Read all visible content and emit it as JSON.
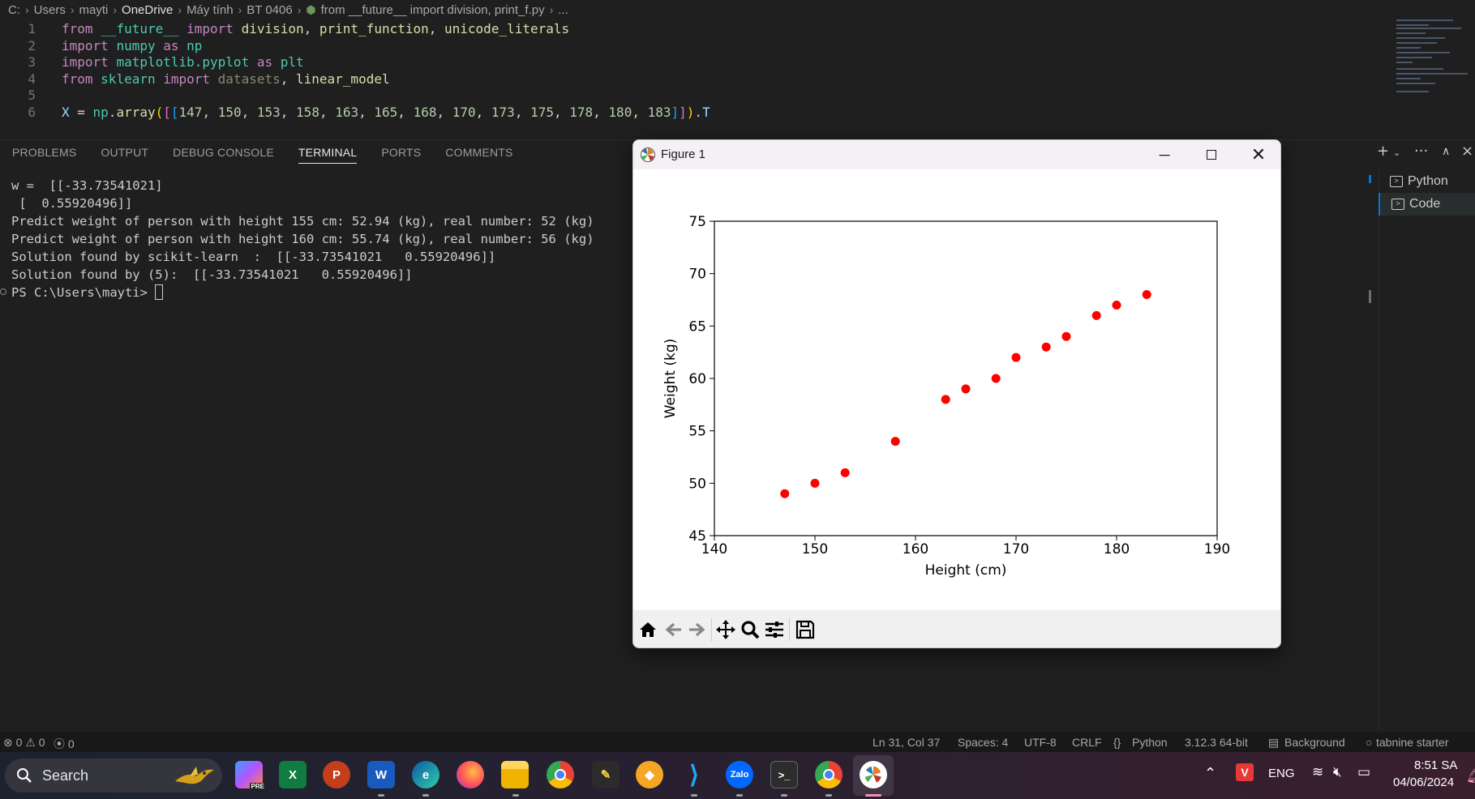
{
  "breadcrumb": {
    "items": [
      "C:",
      "Users",
      "mayti",
      "OneDrive",
      "Máy tính",
      "BT 0406"
    ],
    "file": "from __future__ import division, print_f.py",
    "more": "..."
  },
  "editor": {
    "lines": [
      {
        "no": "1",
        "tokens": [
          [
            "kw",
            "from "
          ],
          [
            "mod",
            "__future__"
          ],
          [
            "kw",
            " import "
          ],
          [
            "fn",
            "division"
          ],
          [
            "op",
            ", "
          ],
          [
            "fn",
            "print_function"
          ],
          [
            "op",
            ", "
          ],
          [
            "fn",
            "unicode_literals"
          ]
        ]
      },
      {
        "no": "2",
        "tokens": [
          [
            "kw",
            "import "
          ],
          [
            "mod",
            "numpy"
          ],
          [
            "kw",
            " as "
          ],
          [
            "mod",
            "np"
          ]
        ]
      },
      {
        "no": "3",
        "tokens": [
          [
            "kw",
            "import "
          ],
          [
            "mod",
            "matplotlib.pyplot"
          ],
          [
            "kw",
            " as "
          ],
          [
            "mod",
            "plt"
          ]
        ]
      },
      {
        "no": "4",
        "tokens": [
          [
            "kw",
            "from "
          ],
          [
            "mod",
            "sklearn"
          ],
          [
            "kw",
            " import "
          ],
          [
            "dim",
            "datasets"
          ],
          [
            "op",
            ", "
          ],
          [
            "fn",
            "linear_model"
          ]
        ]
      },
      {
        "no": "5",
        "tokens": []
      },
      {
        "no": "6",
        "tokens": [
          [
            "var",
            "X "
          ],
          [
            "op",
            "= "
          ],
          [
            "mod",
            "np"
          ],
          [
            "op",
            "."
          ],
          [
            "fn",
            "array"
          ],
          [
            "br1",
            "("
          ],
          [
            "br2",
            "["
          ],
          [
            "br3",
            "["
          ],
          [
            "num",
            "147"
          ],
          [
            "op",
            ", "
          ],
          [
            "num",
            "150"
          ],
          [
            "op",
            ", "
          ],
          [
            "num",
            "153"
          ],
          [
            "op",
            ", "
          ],
          [
            "num",
            "158"
          ],
          [
            "op",
            ", "
          ],
          [
            "num",
            "163"
          ],
          [
            "op",
            ", "
          ],
          [
            "num",
            "165"
          ],
          [
            "op",
            ", "
          ],
          [
            "num",
            "168"
          ],
          [
            "op",
            ", "
          ],
          [
            "num",
            "170"
          ],
          [
            "op",
            ", "
          ],
          [
            "num",
            "173"
          ],
          [
            "op",
            ", "
          ],
          [
            "num",
            "175"
          ],
          [
            "op",
            ", "
          ],
          [
            "num",
            "178"
          ],
          [
            "op",
            ", "
          ],
          [
            "num",
            "180"
          ],
          [
            "op",
            ", "
          ],
          [
            "num",
            "183"
          ],
          [
            "br3",
            "]"
          ],
          [
            "br2",
            "]"
          ],
          [
            "br1",
            ")"
          ],
          [
            "op",
            "."
          ],
          [
            "var",
            "T"
          ]
        ]
      }
    ]
  },
  "panel": {
    "tabs": [
      "PROBLEMS",
      "OUTPUT",
      "DEBUG CONSOLE",
      "TERMINAL",
      "PORTS",
      "COMMENTS"
    ],
    "active_tab": "TERMINAL",
    "terminal_lines": [
      "w =  [[-33.73541021]",
      " [  0.55920496]]",
      "Predict weight of person with height 155 cm: 52.94 (kg), real number: 52 (kg)",
      "Predict weight of person with height 160 cm: 55.74 (kg), real number: 56 (kg)",
      "Solution found by scikit-learn  :  [[-33.73541021   0.55920496]]",
      "Solution found by (5):  [[-33.73541021   0.55920496]]"
    ],
    "prompt": "PS C:\\Users\\mayti> ",
    "terminals": [
      "Python",
      "Code"
    ]
  },
  "figure": {
    "window_title": "Figure 1"
  },
  "chart_data": {
    "type": "scatter",
    "x": [
      147,
      150,
      153,
      158,
      163,
      165,
      168,
      170,
      173,
      175,
      178,
      180,
      183
    ],
    "y": [
      49,
      50,
      51,
      54,
      58,
      59,
      60,
      62,
      63,
      64,
      66,
      67,
      68
    ],
    "xlabel": "Height (cm)",
    "ylabel": "Weight (kg)",
    "xlim": [
      140,
      190
    ],
    "ylim": [
      45,
      75
    ],
    "xticks": [
      "140",
      "150",
      "160",
      "170",
      "180",
      "190"
    ],
    "yticks": [
      "45",
      "50",
      "55",
      "60",
      "65",
      "70",
      "75"
    ],
    "marker_color": "#ff0000"
  },
  "statusbar": {
    "errors": "0",
    "warnings": "0",
    "ports": "0",
    "position": "Ln 31, Col 37",
    "spaces": "Spaces: 4",
    "encoding": "UTF-8",
    "eol": "CRLF",
    "language": "Python",
    "interpreter": "3.12.3 64-bit",
    "background": "Background",
    "tabnine": "tabnine starter"
  },
  "taskbar": {
    "search_label": "Search",
    "language": "ENG",
    "time": "8:51 SA",
    "date": "04/06/2024"
  }
}
